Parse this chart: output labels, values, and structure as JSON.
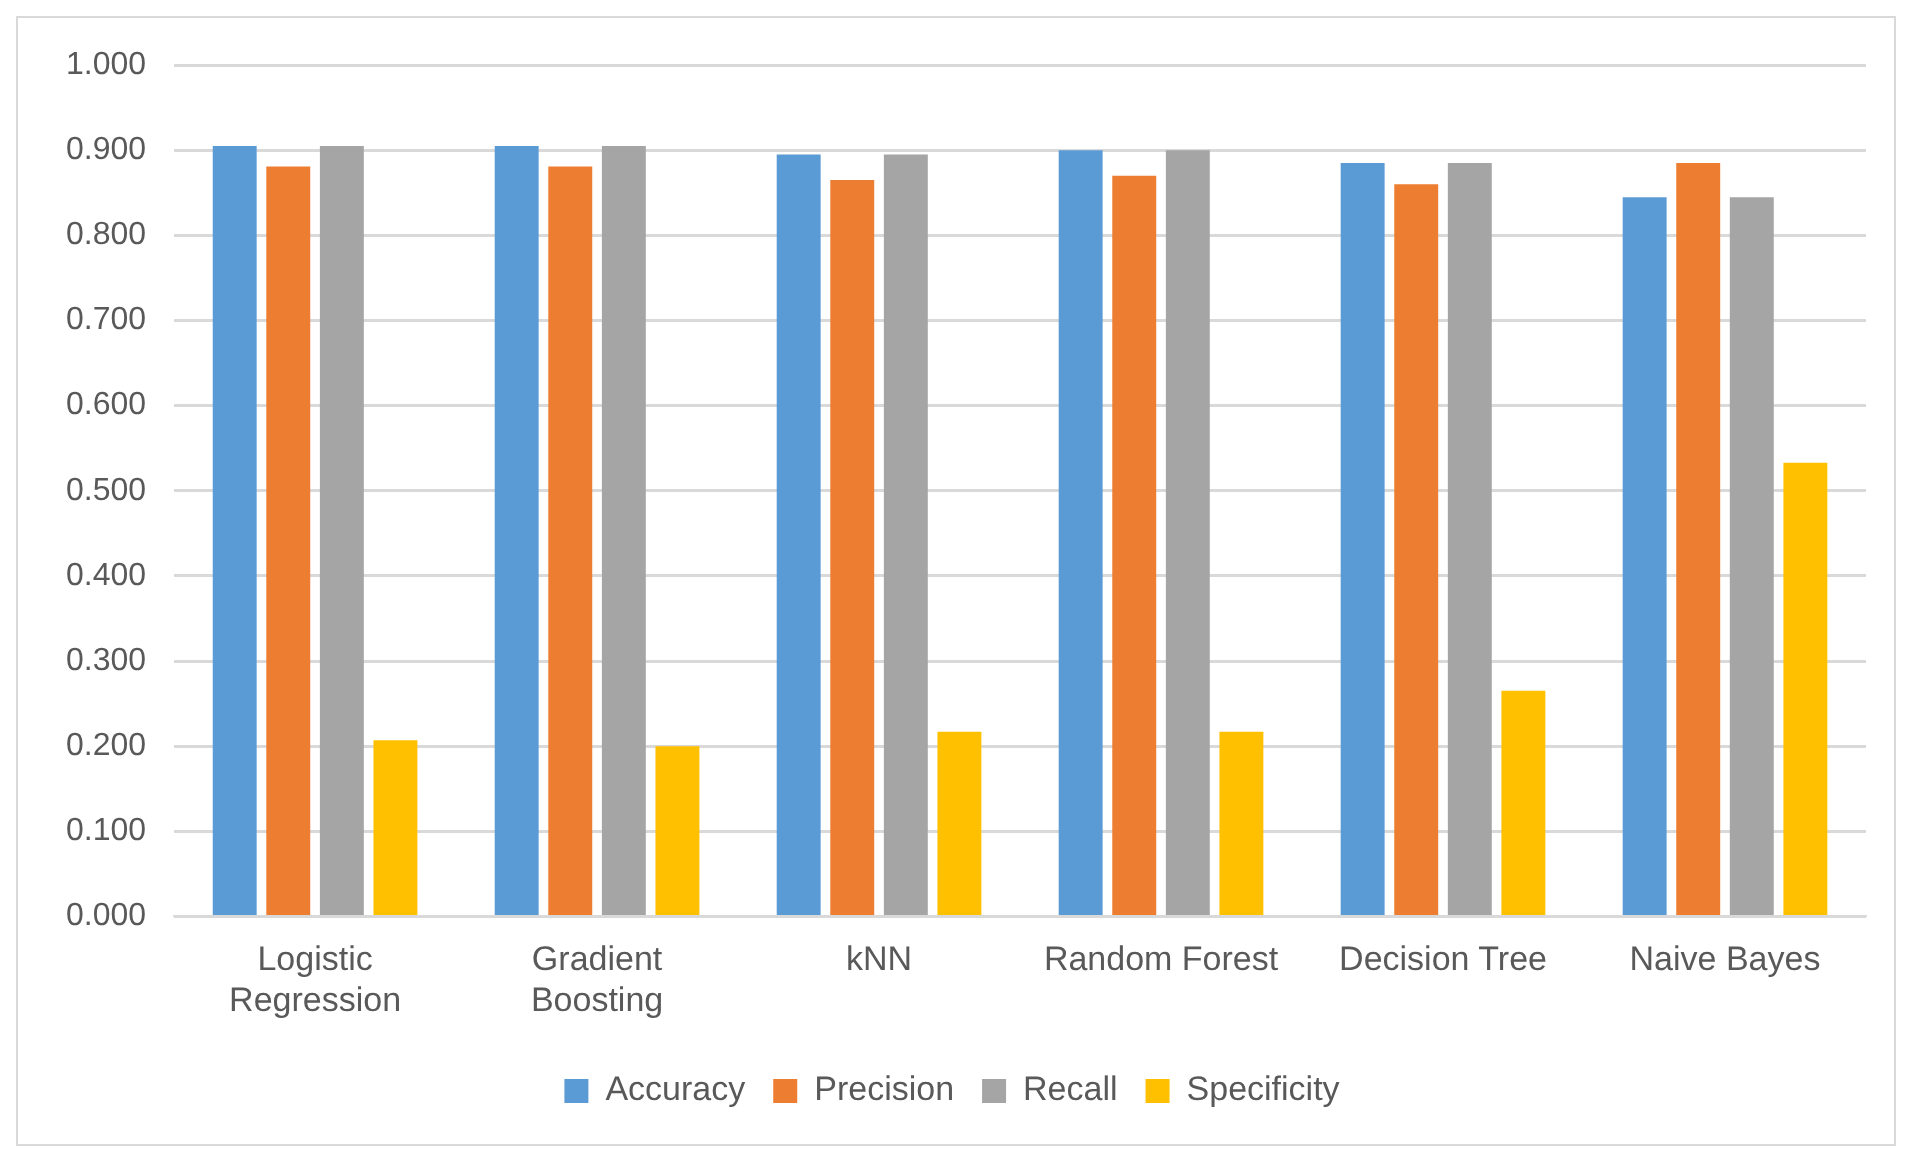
{
  "chart_data": {
    "type": "bar",
    "categories": [
      "Logistic Regression",
      "Gradient Boosting",
      "kNN",
      "Random Forest",
      "Decision Tree",
      "Naive Bayes"
    ],
    "series": [
      {
        "name": "Accuracy",
        "color": "#5b9bd5",
        "values": [
          0.905,
          0.905,
          0.895,
          0.9,
          0.885,
          0.845
        ]
      },
      {
        "name": "Precision",
        "color": "#ed7d31",
        "values": [
          0.881,
          0.881,
          0.865,
          0.87,
          0.86,
          0.885
        ]
      },
      {
        "name": "Recall",
        "color": "#a5a5a5",
        "values": [
          0.905,
          0.905,
          0.895,
          0.9,
          0.885,
          0.845
        ]
      },
      {
        "name": "Specificity",
        "color": "#ffc000",
        "values": [
          0.207,
          0.2,
          0.217,
          0.217,
          0.265,
          0.533
        ]
      }
    ],
    "ylim": [
      0,
      1
    ],
    "yticks": [
      {
        "value": 0,
        "label": "0.000"
      },
      {
        "value": 0.1,
        "label": "0.100"
      },
      {
        "value": 0.2,
        "label": "0.200"
      },
      {
        "value": 0.3,
        "label": "0.300"
      },
      {
        "value": 0.4,
        "label": "0.400"
      },
      {
        "value": 0.5,
        "label": "0.500"
      },
      {
        "value": 0.6,
        "label": "0.600"
      },
      {
        "value": 0.7,
        "label": "0.700"
      },
      {
        "value": 0.8,
        "label": "0.800"
      },
      {
        "value": 0.9,
        "label": "0.900"
      },
      {
        "value": 1,
        "label": "1.000"
      }
    ],
    "grid": "y",
    "legend": "bottom"
  }
}
